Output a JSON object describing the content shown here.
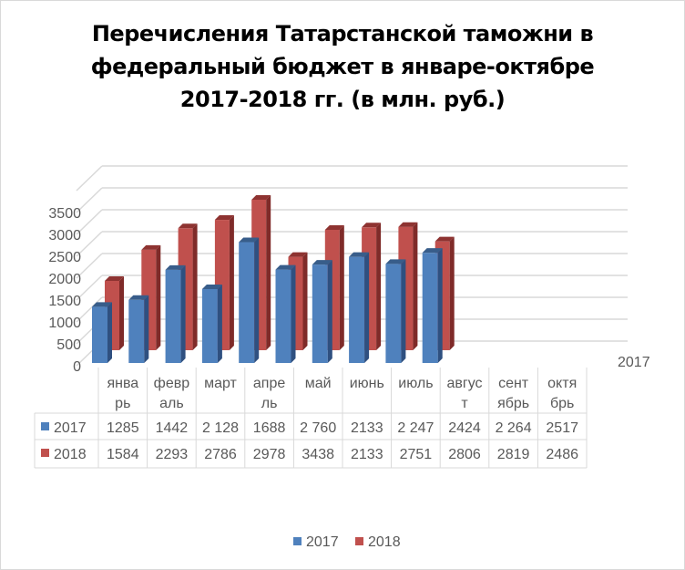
{
  "chart_data": {
    "type": "bar",
    "subtype": "3d-clustered-column-with-data-table",
    "title": "Перечисления Татарстанской таможни в федеральный бюджет в январе-октябре 2017-2018 гг. (в млн. руб.)",
    "title_lines": [
      "Перечисления Татарстанской таможни в",
      "федеральный бюджет в январе-октябре",
      "2017-2018 гг. (в млн. руб.)"
    ],
    "categories": [
      [
        "янва",
        "рь"
      ],
      [
        "февр",
        "аль"
      ],
      [
        "март"
      ],
      [
        "апре",
        "ль"
      ],
      [
        "май"
      ],
      [
        "июнь"
      ],
      [
        "июль"
      ],
      [
        "авгус",
        "т"
      ],
      [
        "сент",
        "ябрь"
      ],
      [
        "октя",
        "брь"
      ]
    ],
    "series": [
      {
        "name": "2017",
        "color": "#4f81bd",
        "values": [
          1285,
          1442,
          2128,
          1688,
          2760,
          2133,
          2247,
          2424,
          2264,
          2517
        ],
        "labels": [
          "1285",
          "1442",
          "2 128",
          "1688",
          "2 760",
          "2133",
          "2 247",
          "2424",
          "2 264",
          "2517"
        ]
      },
      {
        "name": "2018",
        "color": "#c0504d",
        "values": [
          1584,
          2293,
          2786,
          2978,
          3438,
          2133,
          2751,
          2806,
          2819,
          2486
        ],
        "labels": [
          "1584",
          "2293",
          "2786",
          "2978",
          "3438",
          "2133",
          "2751",
          "2806",
          "2819",
          "2486"
        ]
      }
    ],
    "yticks": [
      "0",
      "500",
      "1000",
      "1500",
      "2000",
      "2500",
      "3000",
      "3500"
    ],
    "ylim": [
      0,
      3500
    ],
    "depth_axis_label": "2017",
    "grid": true,
    "legend": "bottom",
    "xlabel": "",
    "ylabel": ""
  }
}
